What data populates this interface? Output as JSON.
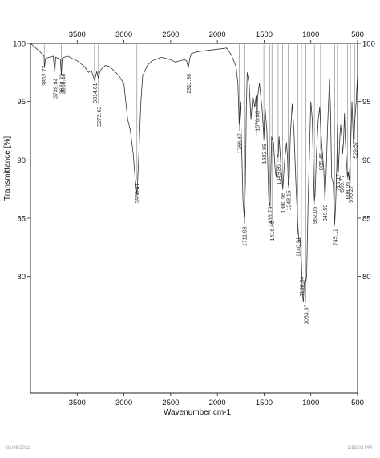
{
  "chart_data": {
    "type": "line",
    "xlabel": "Wavenumber cm-1",
    "ylabel": "Transmittance [%]",
    "xlim": [
      4000,
      500
    ],
    "ylim": [
      70,
      100
    ],
    "x_reversed": true,
    "x_ticks": [
      3500,
      3000,
      2500,
      2000,
      1500,
      1000,
      500
    ],
    "y_ticks": [
      100,
      95,
      90,
      85,
      80
    ],
    "grid": false,
    "series": [
      {
        "x": [
          4000,
          3900,
          3855,
          3850,
          3840,
          3800,
          3756,
          3740,
          3730,
          3700,
          3680,
          3670,
          3660,
          3640,
          3600,
          3500,
          3420,
          3380,
          3350,
          3314,
          3290,
          3274,
          3260,
          3240,
          3200,
          3150,
          3100,
          3050,
          3000,
          2960,
          2930,
          2900,
          2880,
          2860,
          2840,
          2820,
          2800,
          2750,
          2700,
          2600,
          2500,
          2450,
          2400,
          2350,
          2330,
          2311,
          2295,
          2280,
          2250,
          2200,
          2100,
          2000,
          1900,
          1850,
          1800,
          1780,
          1766,
          1755,
          1740,
          1726,
          1711,
          1700,
          1690,
          1680,
          1660,
          1640,
          1620,
          1600,
          1585,
          1578,
          1570,
          1550,
          1520,
          1502,
          1490,
          1470,
          1450,
          1436,
          1420,
          1400,
          1380,
          1370,
          1360,
          1349,
          1340,
          1320,
          1300,
          1280,
          1260,
          1250,
          1240,
          1230,
          1220,
          1200,
          1180,
          1160,
          1140,
          1128,
          1115,
          1108,
          1100,
          1090,
          1080,
          1070,
          1060,
          1053,
          1045,
          1030,
          1000,
          985,
          970,
          962,
          955,
          940,
          920,
          905,
          895,
          880,
          860,
          849,
          835,
          820,
          800,
          790,
          777,
          760,
          745,
          735,
          722,
          715,
          705,
          690,
          680,
          669,
          660,
          650,
          640,
          632,
          625,
          608,
          600,
          590,
          576,
          560,
          545,
          540,
          528,
          515,
          500
        ],
        "y": [
          100,
          99.3,
          98.9,
          97.9,
          98.7,
          98.8,
          98.9,
          97.5,
          98.8,
          98.7,
          98.6,
          97.3,
          98.7,
          98.8,
          98.9,
          98.5,
          98.0,
          97.5,
          97.7,
          96.8,
          97.6,
          97.0,
          97.5,
          97.8,
          98.1,
          98.0,
          97.6,
          97.2,
          96.5,
          93.5,
          92.5,
          90.5,
          88.4,
          87.0,
          90.5,
          94.8,
          97.2,
          98.1,
          98.5,
          98.8,
          98.6,
          98.4,
          98.5,
          98.6,
          98.5,
          97.9,
          98.7,
          99.1,
          99.2,
          99.3,
          99.4,
          99.5,
          99.6,
          99.0,
          98.0,
          96.5,
          93.0,
          95.0,
          91.0,
          86.5,
          85.0,
          88.0,
          94.5,
          97.5,
          96.5,
          93.5,
          95.5,
          94.5,
          95.5,
          92.0,
          95.3,
          96.6,
          94.2,
          91.8,
          94.5,
          92.5,
          86.5,
          86.0,
          92.0,
          91.5,
          89.0,
          88.5,
          90.5,
          90.2,
          92.0,
          89.5,
          87.5,
          90.0,
          91.5,
          90.2,
          87.8,
          88.5,
          92.0,
          94.8,
          92.5,
          88.0,
          84.5,
          83.0,
          83.2,
          82.5,
          81.0,
          78.5,
          77.8,
          79.5,
          79.8,
          79.5,
          80.0,
          86.0,
          95.0,
          93.5,
          88.5,
          86.5,
          87.0,
          90.5,
          93.5,
          94.5,
          92.8,
          91.0,
          89.0,
          86.5,
          89.0,
          93.0,
          97.0,
          94.5,
          88.5,
          88.0,
          84.5,
          86.0,
          89.5,
          93.0,
          89.0,
          92.0,
          93.0,
          92.0,
          90.5,
          91.5,
          94.0,
          92.0,
          90.8,
          88.5,
          89.0,
          88.2,
          90.5,
          95.0,
          91.5,
          92.0,
          93.5,
          95.0,
          97.5
        ]
      }
    ],
    "peak_labels": [
      {
        "x": 3852.77,
        "text": "3852.77",
        "y_start": 98.3
      },
      {
        "x": 3739.04,
        "text": "3739.04",
        "y_start": 97.2
      },
      {
        "x": 3670.73,
        "text": "3670.73",
        "y_start": 97.6
      },
      {
        "x": 3650.46,
        "text": "3650.46",
        "y_start": 97.6
      },
      {
        "x": 3314.61,
        "text": "3314.61",
        "y_start": 96.8
      },
      {
        "x": 3272.63,
        "text": "3272.63",
        "y_start": 94.8
      },
      {
        "x": 2860.41,
        "text": "2860.41",
        "y_start": 88.2
      },
      {
        "x": 2311.98,
        "text": "2311.98",
        "y_start": 97.6
      },
      {
        "x": 1766.47,
        "text": "1766.47",
        "y_start": 92.5
      },
      {
        "x": 1711.98,
        "text": "1711.98",
        "y_start": 84.5
      },
      {
        "x": 1578.36,
        "text": "1578.36",
        "y_start": 94.4
      },
      {
        "x": 1502.99,
        "text": "1502.99",
        "y_start": 91.6
      },
      {
        "x": 1436.79,
        "text": "1436.79",
        "y_start": 86.2
      },
      {
        "x": 1416.46,
        "text": "1416.46",
        "y_start": 85.0
      },
      {
        "x": 1349.86,
        "text": "1349.86",
        "y_start": 89.8
      },
      {
        "x": 1300.96,
        "text": "1300.96",
        "y_start": 87.4
      },
      {
        "x": 1243.15,
        "text": "1243.15",
        "y_start": 87.6
      },
      {
        "x": 1140.91,
        "text": "1140.91",
        "y_start": 83.6
      },
      {
        "x": 1100.84,
        "text": "1100.84",
        "y_start": 80.2
      },
      {
        "x": 1053.97,
        "text": "1053.97",
        "y_start": 77.8
      },
      {
        "x": 962.06,
        "text": "962.06",
        "y_start": 86.2
      },
      {
        "x": 895.46,
        "text": "895.46",
        "y_start": 90.8
      },
      {
        "x": 849.59,
        "text": "849.59",
        "y_start": 86.4
      },
      {
        "x": 745.11,
        "text": "745.11",
        "y_start": 84.3
      },
      {
        "x": 715.17,
        "text": "715.17",
        "y_start": 89.0
      },
      {
        "x": 669.77,
        "text": "669.77",
        "y_start": 88.9
      },
      {
        "x": 608.09,
        "text": "608.09",
        "y_start": 88.3
      },
      {
        "x": 576.27,
        "text": "576.27",
        "y_start": 88.0
      },
      {
        "x": 529.57,
        "text": "529.57",
        "y_start": 91.8
      }
    ]
  },
  "footer": {
    "left": "01/05/2011",
    "right": "1:53:02 PM"
  }
}
